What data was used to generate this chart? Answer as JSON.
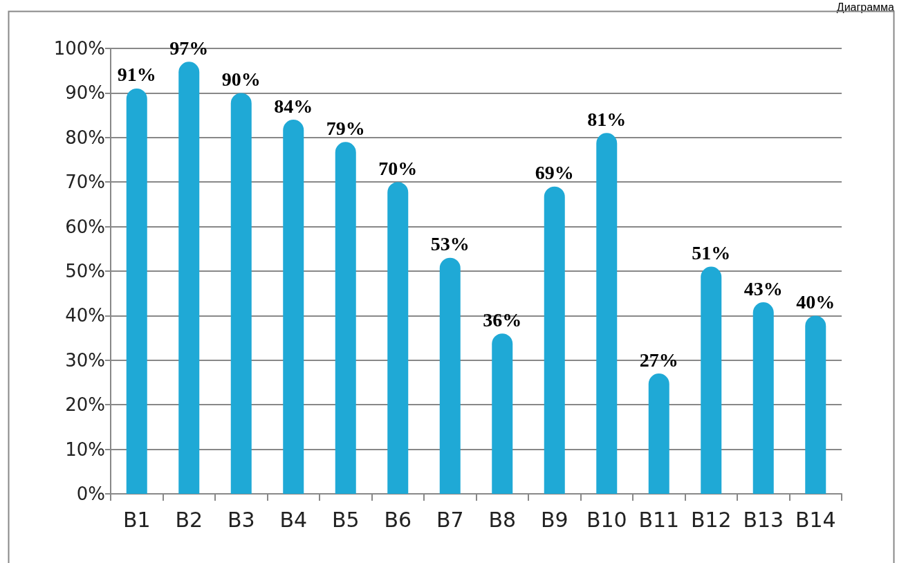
{
  "chart_data": {
    "type": "bar",
    "annotations": [
      "Диаграмма"
    ],
    "categories": [
      "B1",
      "B2",
      "B3",
      "B4",
      "B5",
      "B6",
      "B7",
      "B8",
      "B9",
      "B10",
      "B11",
      "B12",
      "B13",
      "B14"
    ],
    "values": [
      91,
      97,
      90,
      84,
      79,
      70,
      53,
      36,
      69,
      81,
      27,
      51,
      43,
      40
    ],
    "value_labels": [
      "91%",
      "97%",
      "90%",
      "84%",
      "79%",
      "70%",
      "53%",
      "36%",
      "69%",
      "81%",
      "27%",
      "51%",
      "43%",
      "40%"
    ],
    "color": "#1fa9d6",
    "ylim": [
      0,
      100
    ],
    "yticks": [
      {
        "value": 0,
        "label": "0%"
      },
      {
        "value": 10,
        "label": "10%"
      },
      {
        "value": 20,
        "label": "20%"
      },
      {
        "value": 30,
        "label": "30%"
      },
      {
        "value": 40,
        "label": "40%"
      },
      {
        "value": 50,
        "label": "50%"
      },
      {
        "value": 60,
        "label": "60%"
      },
      {
        "value": 70,
        "label": "70%"
      },
      {
        "value": 80,
        "label": "80%"
      },
      {
        "value": 90,
        "label": "90%"
      },
      {
        "value": 100,
        "label": "100%"
      }
    ],
    "grid": true
  }
}
